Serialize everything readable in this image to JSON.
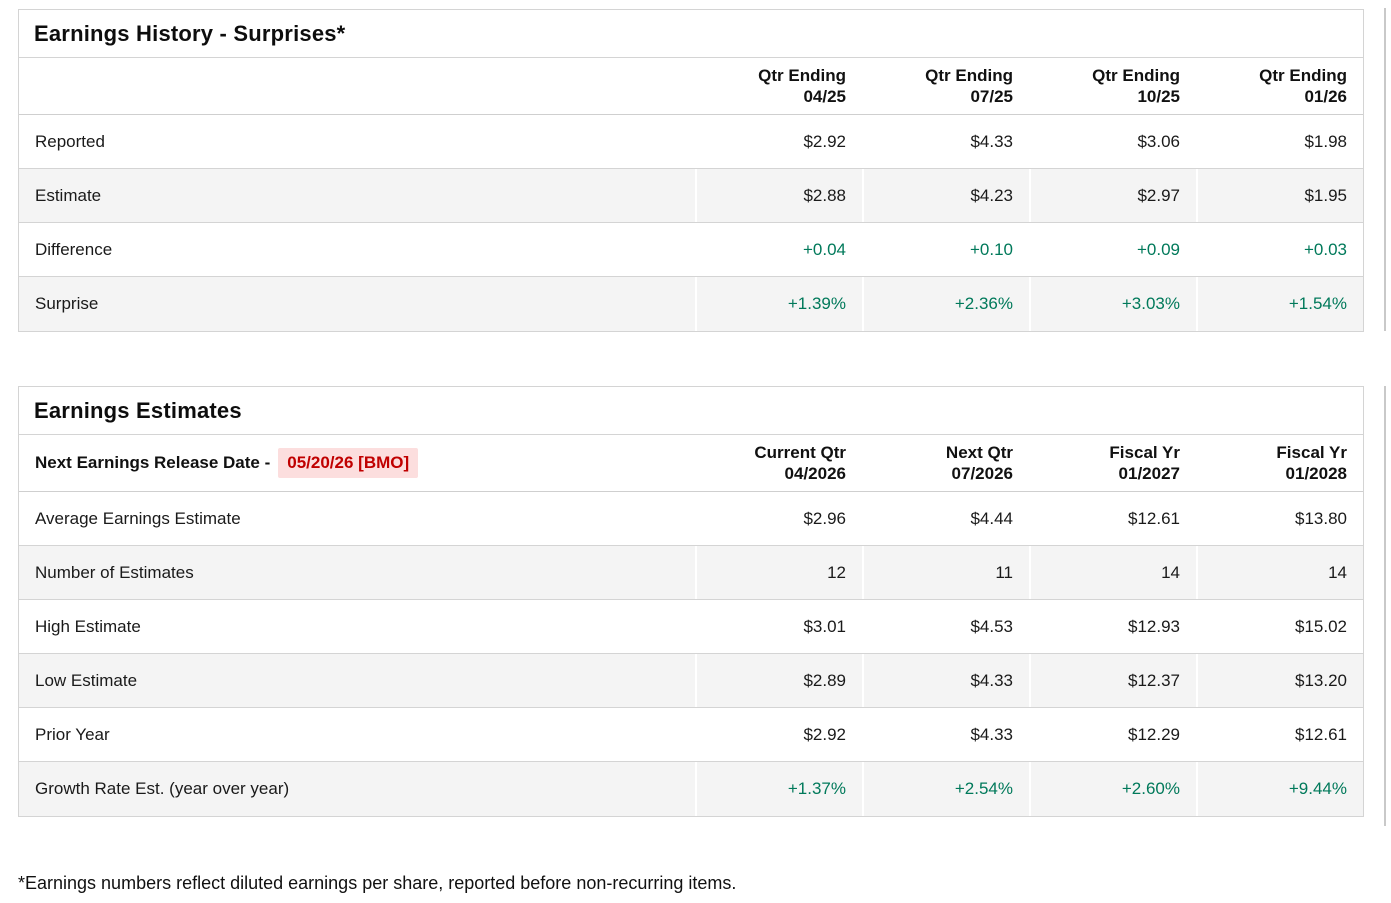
{
  "colors": {
    "positive_green": "#00795a",
    "alert_red_text": "#c00000",
    "alert_red_background": "#fcdede",
    "row_stripe": "#f4f4f4",
    "table_border": "#d4d4d4"
  },
  "earnings_history": {
    "title": "Earnings History - Surprises*",
    "columns": [
      {
        "line1": "Qtr Ending",
        "line2": "04/25"
      },
      {
        "line1": "Qtr Ending",
        "line2": "07/25"
      },
      {
        "line1": "Qtr Ending",
        "line2": "10/25"
      },
      {
        "line1": "Qtr Ending",
        "line2": "01/26"
      }
    ],
    "rows": [
      {
        "label": "Reported",
        "values": [
          "$2.92",
          "$4.33",
          "$3.06",
          "$1.98"
        ]
      },
      {
        "label": "Estimate",
        "values": [
          "$2.88",
          "$4.23",
          "$2.97",
          "$1.95"
        ]
      },
      {
        "label": "Difference",
        "values": [
          "+0.04",
          "+0.10",
          "+0.09",
          "+0.03"
        ]
      },
      {
        "label": "Surprise",
        "values": [
          "+1.39%",
          "+2.36%",
          "+3.03%",
          "+1.54%"
        ]
      }
    ]
  },
  "earnings_estimates": {
    "title": "Earnings Estimates",
    "release_label": "Next Earnings Release Date -",
    "release_date": "05/20/26 [BMO]",
    "columns": [
      {
        "line1": "Current Qtr",
        "line2": "04/2026"
      },
      {
        "line1": "Next Qtr",
        "line2": "07/2026"
      },
      {
        "line1": "Fiscal Yr",
        "line2": "01/2027"
      },
      {
        "line1": "Fiscal Yr",
        "line2": "01/2028"
      }
    ],
    "rows": [
      {
        "label": "Average Earnings Estimate",
        "values": [
          "$2.96",
          "$4.44",
          "$12.61",
          "$13.80"
        ]
      },
      {
        "label": "Number of Estimates",
        "values": [
          "12",
          "11",
          "14",
          "14"
        ]
      },
      {
        "label": "High Estimate",
        "values": [
          "$3.01",
          "$4.53",
          "$12.93",
          "$15.02"
        ]
      },
      {
        "label": "Low Estimate",
        "values": [
          "$2.89",
          "$4.33",
          "$12.37",
          "$13.20"
        ]
      },
      {
        "label": "Prior Year",
        "values": [
          "$2.92",
          "$4.33",
          "$12.29",
          "$12.61"
        ]
      },
      {
        "label": "Growth Rate Est. (year over year)",
        "values": [
          "+1.37%",
          "+2.54%",
          "+2.60%",
          "+9.44%"
        ]
      }
    ]
  },
  "footnote": "*Earnings numbers reflect diluted earnings per share, reported before non-recurring items."
}
